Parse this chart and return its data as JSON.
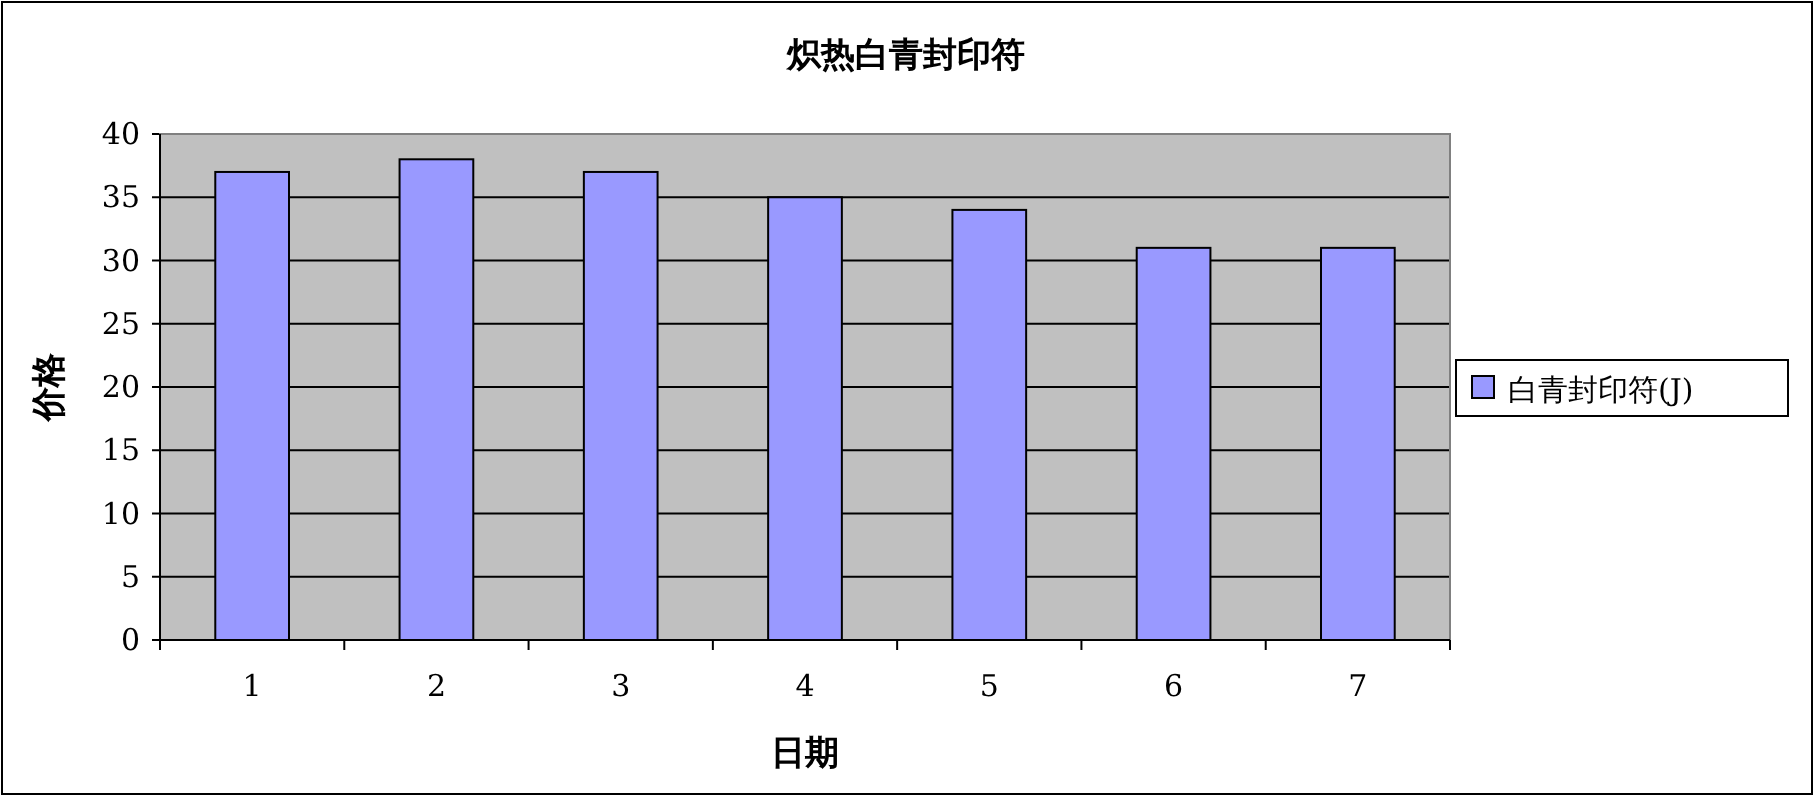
{
  "chart_data": {
    "type": "bar",
    "title": "炽热白青封印符",
    "xlabel": "日期",
    "ylabel": "价格",
    "categories": [
      "1",
      "2",
      "3",
      "4",
      "5",
      "6",
      "7"
    ],
    "series": [
      {
        "name": "白青封印符(J)",
        "color": "#9999ff",
        "values": [
          37,
          38,
          37,
          35,
          34,
          31,
          31
        ]
      }
    ],
    "ylim": [
      0,
      40
    ],
    "yticks": [
      0,
      5,
      10,
      15,
      20,
      25,
      30,
      35,
      40
    ],
    "grid": "y",
    "legend": "right"
  }
}
